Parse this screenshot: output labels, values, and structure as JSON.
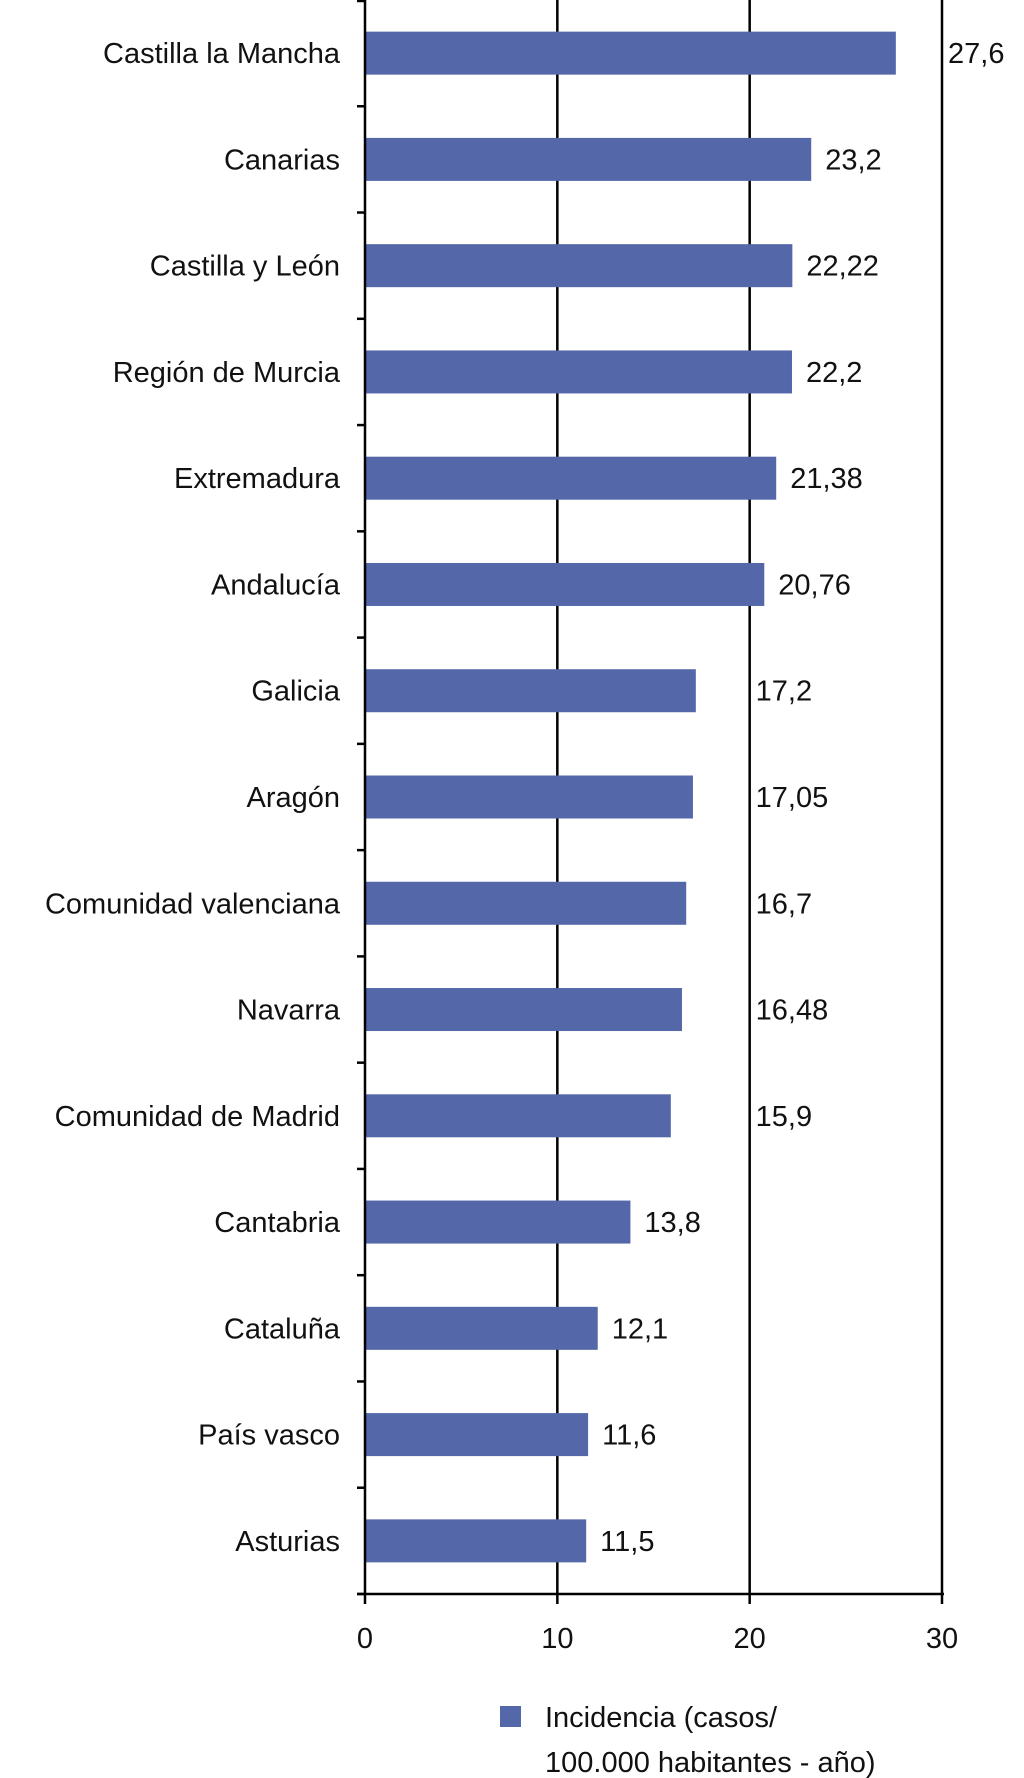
{
  "chart_data": {
    "type": "bar",
    "orientation": "horizontal",
    "categories": [
      "Castilla la Mancha",
      "Canarias",
      "Castilla y León",
      "Región de Murcia",
      "Extremadura",
      "Andalucía",
      "Galicia",
      "Aragón",
      "Comunidad valenciana",
      "Navarra",
      "Comunidad de Madrid",
      "Cantabria",
      "Cataluña",
      "País vasco",
      "Asturias"
    ],
    "series": [
      {
        "name": "Incidencia (casos/ 100.000 habitantes - año)",
        "values": [
          27.6,
          23.2,
          22.22,
          22.2,
          21.38,
          20.76,
          17.2,
          17.05,
          16.7,
          16.48,
          15.9,
          13.8,
          12.1,
          11.6,
          11.5
        ],
        "labels": [
          "27,6",
          "23,2",
          "22,22",
          "22,2",
          "21,38",
          "20,76",
          "17,2",
          "17,05",
          "16,7",
          "16,48",
          "15,9",
          "13,8",
          "12,1",
          "11,6",
          "11,5"
        ],
        "color": "#5367a9"
      }
    ],
    "xlim": [
      0,
      30
    ],
    "xticks": [
      "0",
      "10",
      "20",
      "30"
    ],
    "xtick_values": [
      0,
      10,
      20,
      30
    ],
    "grid": "vertical",
    "legend": {
      "position": "bottom",
      "line1": "Incidencia (casos/",
      "line2": "100.000 habitantes - año)"
    }
  }
}
